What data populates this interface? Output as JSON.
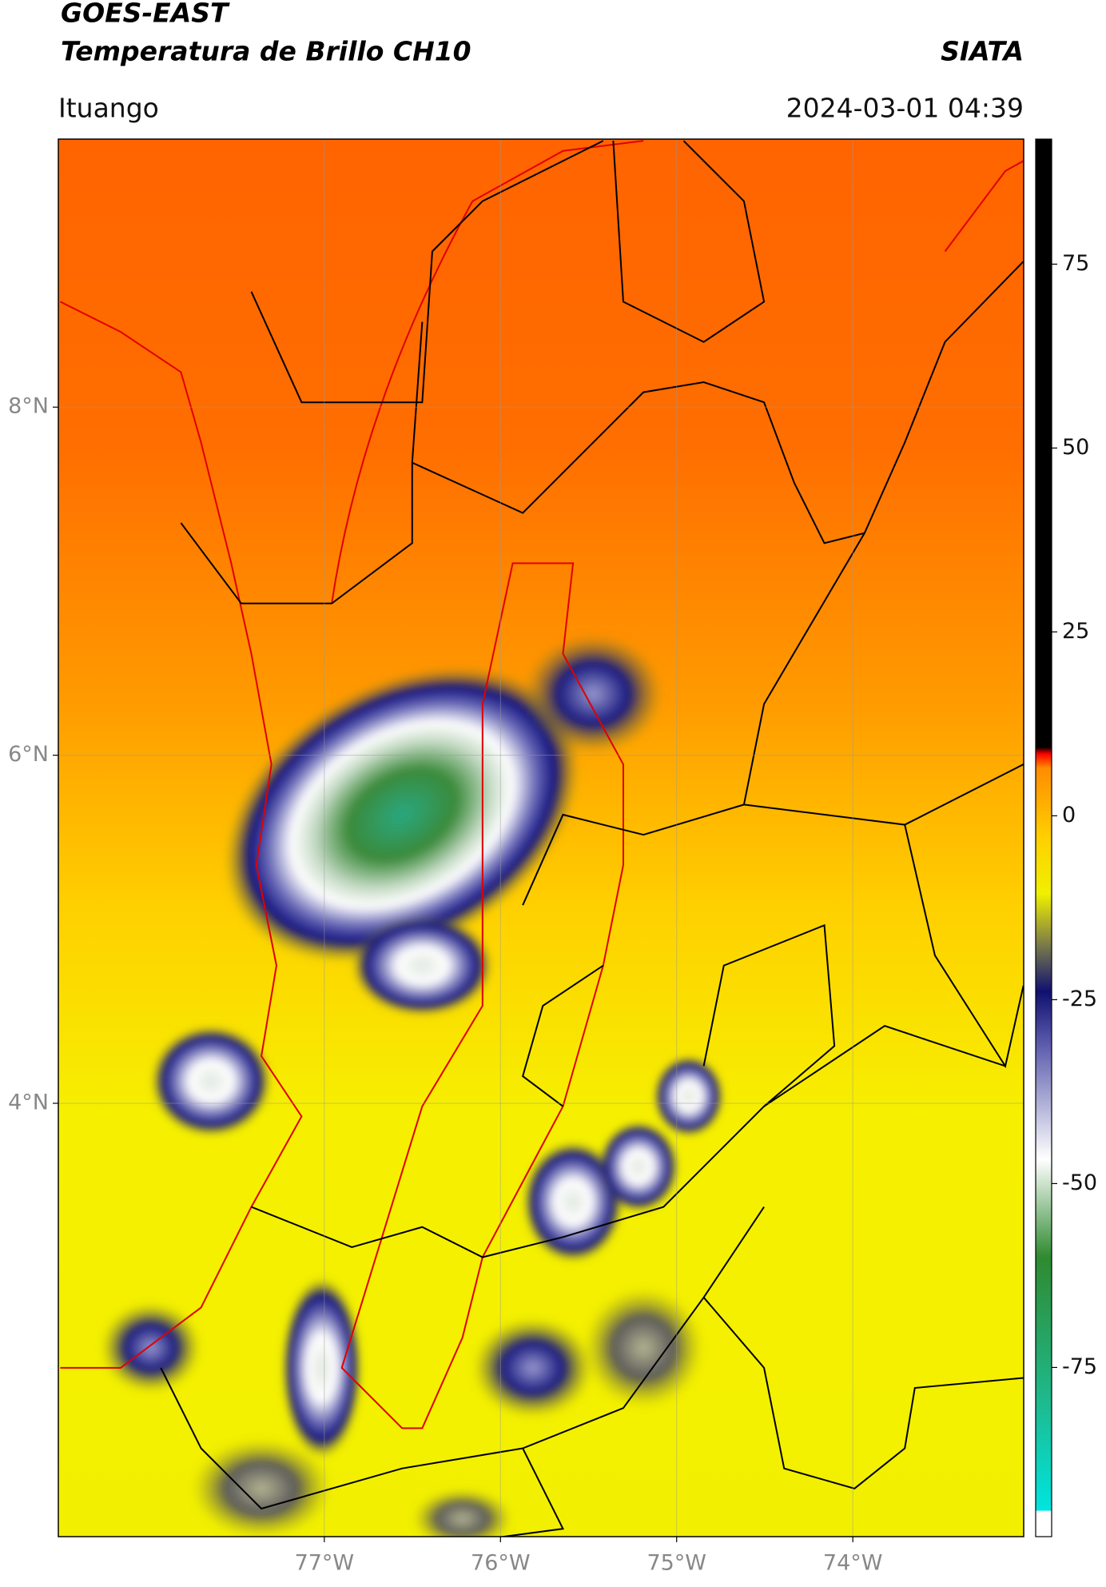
{
  "header": {
    "title": "GOES-EAST",
    "subtitle": "Temperatura de Brillo CH10",
    "brand": "SIATA",
    "region": "Ituango",
    "datetime": "2024-03-01 04:39"
  },
  "map": {
    "lonlim": [
      -78.51,
      -73.03
    ],
    "latlim": [
      1.51,
      9.54
    ],
    "grid": true,
    "lonticks": [
      {
        "value": -77,
        "label": "77°W"
      },
      {
        "value": -76,
        "label": "76°W"
      },
      {
        "value": -75,
        "label": "75°W"
      },
      {
        "value": -74,
        "label": "74°W"
      }
    ],
    "latticks": [
      {
        "value": 8,
        "label": "8°N"
      },
      {
        "value": 6,
        "label": "6°N"
      },
      {
        "value": 4,
        "label": "4°N"
      }
    ]
  },
  "colorbar": {
    "lim": [
      -98,
      92
    ],
    "ticks": [
      -75,
      -50,
      -25,
      0,
      25,
      50,
      75
    ]
  }
}
